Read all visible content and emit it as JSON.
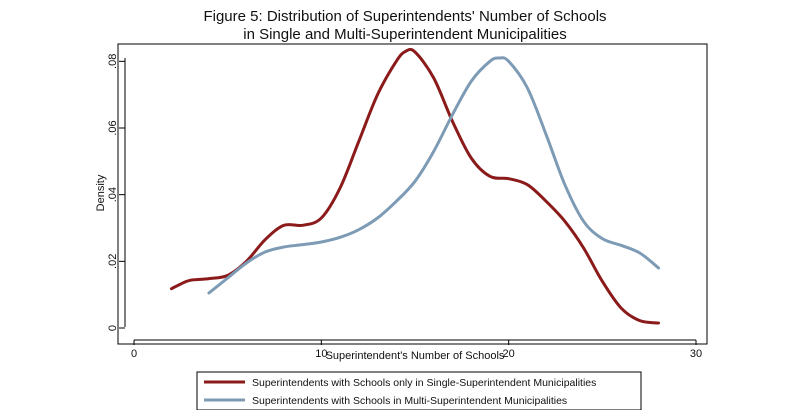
{
  "chart_data": {
    "type": "line",
    "title": [
      "Figure 5: Distribution of Superintendents' Number of Schools",
      "in Single and Multi-Superintendent Municipalities"
    ],
    "xlabel": "Superintendent's Number of Schools",
    "ylabel": "Density",
    "xlim": [
      0,
      30
    ],
    "ylim": [
      0,
      0.084
    ],
    "x_ticks": [
      {
        "value": 0,
        "label": "0"
      },
      {
        "value": 10,
        "label": "10"
      },
      {
        "value": 20,
        "label": "20"
      },
      {
        "value": 30,
        "label": "30"
      }
    ],
    "y_ticks": [
      {
        "value": 0,
        "label": "0"
      },
      {
        "value": 0.02,
        "label": ".02"
      },
      {
        "value": 0.04,
        "label": ".04"
      },
      {
        "value": 0.06,
        "label": ".06"
      },
      {
        "value": 0.08,
        "label": ".08"
      }
    ],
    "grid": false,
    "legend_position": "bottom",
    "series": [
      {
        "name": "Superintendents with Schools only in Single-Superintendent Municipalities",
        "color": "#8b1a1a",
        "points": [
          [
            2.0,
            0.0118
          ],
          [
            2.5,
            0.0132
          ],
          [
            3.0,
            0.0143
          ],
          [
            4.0,
            0.0148
          ],
          [
            5.0,
            0.0158
          ],
          [
            6.0,
            0.02
          ],
          [
            7.0,
            0.0265
          ],
          [
            8.0,
            0.0308
          ],
          [
            9.0,
            0.0308
          ],
          [
            10.0,
            0.033
          ],
          [
            11.0,
            0.042
          ],
          [
            12.0,
            0.056
          ],
          [
            13.0,
            0.07
          ],
          [
            14.0,
            0.08
          ],
          [
            14.5,
            0.083
          ],
          [
            15.0,
            0.0828
          ],
          [
            16.0,
            0.075
          ],
          [
            17.0,
            0.062
          ],
          [
            18.0,
            0.051
          ],
          [
            19.0,
            0.0455
          ],
          [
            20.0,
            0.0448
          ],
          [
            21.0,
            0.043
          ],
          [
            22.0,
            0.038
          ],
          [
            23.0,
            0.032
          ],
          [
            24.0,
            0.024
          ],
          [
            25.0,
            0.014
          ],
          [
            26.0,
            0.006
          ],
          [
            27.0,
            0.0022
          ],
          [
            28.0,
            0.0015
          ]
        ]
      },
      {
        "name": "Superintendents with Schools in Multi-Superintendent Municipalities",
        "color": "#7e9bb5",
        "points": [
          [
            4.0,
            0.0105
          ],
          [
            5.0,
            0.015
          ],
          [
            6.0,
            0.0195
          ],
          [
            7.0,
            0.0228
          ],
          [
            8.0,
            0.0243
          ],
          [
            9.0,
            0.025
          ],
          [
            10.0,
            0.0258
          ],
          [
            11.0,
            0.0272
          ],
          [
            12.0,
            0.0295
          ],
          [
            13.0,
            0.033
          ],
          [
            14.0,
            0.038
          ],
          [
            15.0,
            0.044
          ],
          [
            16.0,
            0.053
          ],
          [
            17.0,
            0.064
          ],
          [
            18.0,
            0.074
          ],
          [
            19.0,
            0.08
          ],
          [
            19.5,
            0.081
          ],
          [
            20.0,
            0.08
          ],
          [
            21.0,
            0.072
          ],
          [
            22.0,
            0.058
          ],
          [
            23.0,
            0.043
          ],
          [
            24.0,
            0.032
          ],
          [
            25.0,
            0.0268
          ],
          [
            26.0,
            0.0248
          ],
          [
            27.0,
            0.0225
          ],
          [
            28.0,
            0.018
          ]
        ]
      }
    ]
  }
}
